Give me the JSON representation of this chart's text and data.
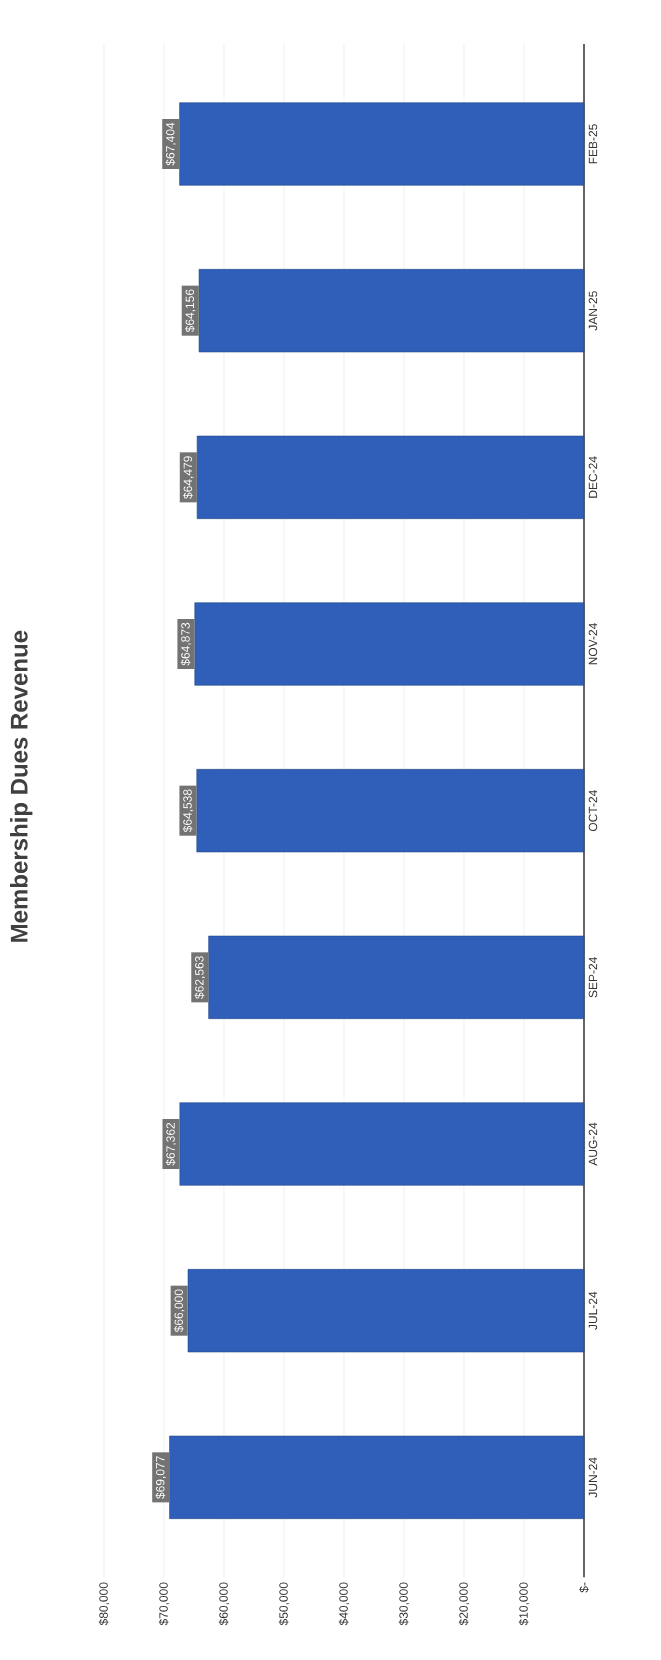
{
  "chart_data": {
    "type": "bar",
    "orientation": "horizontal",
    "title": "Membership Dues Revenue",
    "categories": [
      "FEB-25",
      "JAN-25",
      "DEC-24",
      "NOV-24",
      "OCT-24",
      "SEP-24",
      "AUG-24",
      "JUL-24",
      "JUN-24"
    ],
    "values": [
      67404,
      64156,
      64479,
      64873,
      64538,
      62563,
      67362,
      66000,
      69077
    ],
    "value_labels": [
      "$67,404",
      "$64,156",
      "$64,479",
      "$64,873",
      "$64,538",
      "$62,563",
      "$67,362",
      "$66,000",
      "$69,077"
    ],
    "color": "#2f5fb8",
    "xlim": [
      80000,
      0
    ],
    "xticks": [
      {
        "value": 0,
        "label": "$-"
      },
      {
        "value": 10000,
        "label": "$10,000"
      },
      {
        "value": 20000,
        "label": "$20,000"
      },
      {
        "value": 30000,
        "label": "$30,000"
      },
      {
        "value": 40000,
        "label": "$40,000"
      },
      {
        "value": 50000,
        "label": "$50,000"
      },
      {
        "value": 60000,
        "label": "$60,000"
      },
      {
        "value": 70000,
        "label": "$70,000"
      },
      {
        "value": 80000,
        "label": "$80,000"
      }
    ],
    "grid": "x"
  }
}
